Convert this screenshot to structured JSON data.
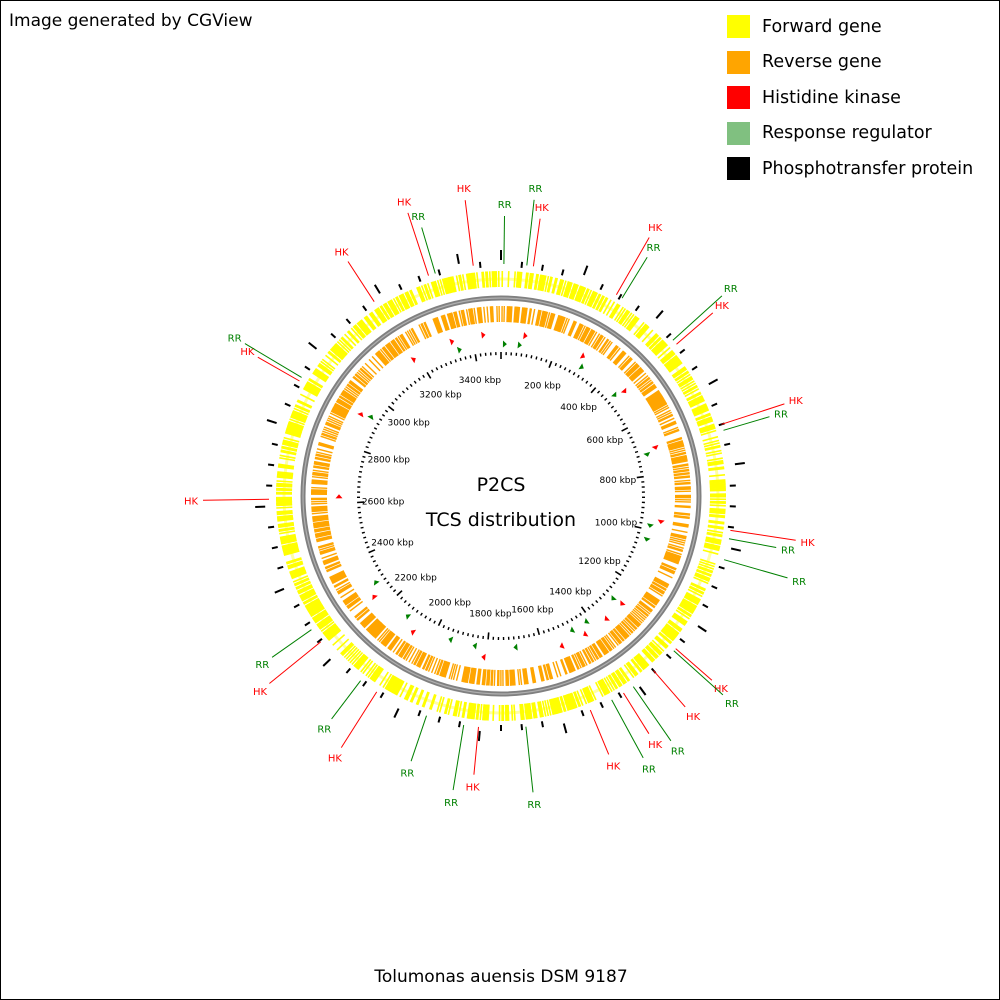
{
  "credit": "Image generated by CGView",
  "legend": [
    {
      "label": "Forward gene",
      "color": "#ffff00"
    },
    {
      "label": "Reverse gene",
      "color": "#ffa500"
    },
    {
      "label": "Histidine kinase",
      "color": "#ff0000"
    },
    {
      "label": "Response regulator",
      "color": "#80c080"
    },
    {
      "label": "Phosphotransfer protein",
      "color": "#000000"
    }
  ],
  "center": {
    "line1": "P2CS",
    "line2": "TCS distribution"
  },
  "organism": "Tolumonas auensis DSM 9187",
  "map": {
    "genome_kbp": 3500,
    "kbp_labels": [
      "200 kbp",
      "400 kbp",
      "600 kbp",
      "800 kbp",
      "1000 kbp",
      "1200 kbp",
      "1400 kbp",
      "1600 kbp",
      "1800 kbp",
      "2000 kbp",
      "2200 kbp",
      "2400 kbp",
      "2600 kbp",
      "2800 kbp",
      "3000 kbp",
      "3200 kbp",
      "3400 kbp"
    ],
    "colors": {
      "forward": "#ffff00",
      "reverse": "#ffa500",
      "backbone": "#808080",
      "hk": "#ff0000",
      "rr": "#008000",
      "tick": "#000000"
    },
    "features": [
      {
        "label": "HK",
        "type": "hk",
        "kbp": 3433
      },
      {
        "label": "RR",
        "type": "rr",
        "kbp": 7
      },
      {
        "label": "RR",
        "type": "rr",
        "kbp": 62
      },
      {
        "label": "HK",
        "type": "hk",
        "kbp": 78
      },
      {
        "label": "HK",
        "type": "hk",
        "kbp": 290
      },
      {
        "label": "RR",
        "type": "rr",
        "kbp": 306
      },
      {
        "label": "RR",
        "type": "rr",
        "kbp": 465
      },
      {
        "label": "HK",
        "type": "hk",
        "kbp": 478
      },
      {
        "label": "HK",
        "type": "hk",
        "kbp": 700
      },
      {
        "label": "RR",
        "type": "rr",
        "kbp": 715
      },
      {
        "label": "HK",
        "type": "hk",
        "kbp": 958
      },
      {
        "label": "RR",
        "type": "rr",
        "kbp": 978
      },
      {
        "label": "RR",
        "type": "rr",
        "kbp": 1030
      },
      {
        "label": "HK",
        "type": "hk",
        "kbp": 1275
      },
      {
        "label": "RR",
        "type": "rr",
        "kbp": 1282
      },
      {
        "label": "HK",
        "type": "hk",
        "kbp": 1350
      },
      {
        "label": "RR",
        "type": "rr",
        "kbp": 1412
      },
      {
        "label": "HK",
        "type": "hk",
        "kbp": 1440
      },
      {
        "label": "RR",
        "type": "rr",
        "kbp": 1473
      },
      {
        "label": "HK",
        "type": "hk",
        "kbp": 1530
      },
      {
        "label": "RR",
        "type": "rr",
        "kbp": 1690
      },
      {
        "label": "HK",
        "type": "hk",
        "kbp": 1804
      },
      {
        "label": "RR",
        "type": "rr",
        "kbp": 1840
      },
      {
        "label": "RR",
        "type": "rr",
        "kbp": 1932
      },
      {
        "label": "HK",
        "type": "hk",
        "kbp": 2065
      },
      {
        "label": "RR",
        "type": "rr",
        "kbp": 2112
      },
      {
        "label": "HK",
        "type": "hk",
        "kbp": 2246
      },
      {
        "label": "RR",
        "type": "rr",
        "kbp": 2283
      },
      {
        "label": "HK",
        "type": "hk",
        "kbp": 2617
      },
      {
        "label": "HK",
        "type": "hk",
        "kbp": 2914
      },
      {
        "label": "RR",
        "type": "rr",
        "kbp": 2924
      },
      {
        "label": "HK",
        "type": "hk",
        "kbp": 3178
      },
      {
        "label": "HK",
        "type": "hk",
        "kbp": 3323
      },
      {
        "label": "RR",
        "type": "rr",
        "kbp": 3340
      }
    ]
  }
}
